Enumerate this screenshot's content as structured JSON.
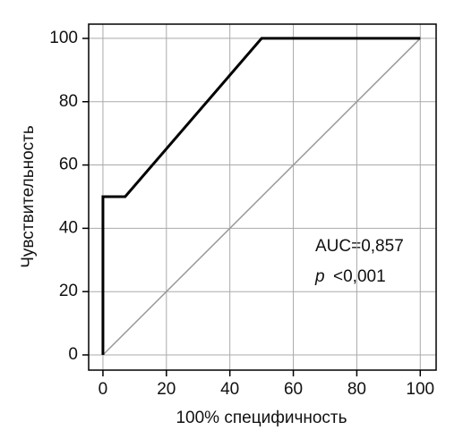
{
  "chart_data": {
    "type": "line",
    "xlabel": "100% специфичность",
    "ylabel": "Чувствительность",
    "annotations": [
      "AUC=0,857",
      "p",
      "<0,001"
    ],
    "series": [
      {
        "color": "#000000",
        "x": [
          0,
          0,
          7,
          50,
          100
        ],
        "values": [
          0,
          50,
          50,
          100,
          100
        ]
      },
      {
        "color": "#999999",
        "x": [
          0,
          100
        ],
        "values": [
          0,
          100
        ]
      }
    ],
    "xlim": [
      -4.5,
      105
    ],
    "ylim": [
      -4.8,
      104.5
    ],
    "xticks": [
      0,
      20,
      40,
      60,
      80,
      100
    ],
    "yticks": [
      0,
      20,
      40,
      60,
      80,
      100
    ],
    "grid": true
  }
}
